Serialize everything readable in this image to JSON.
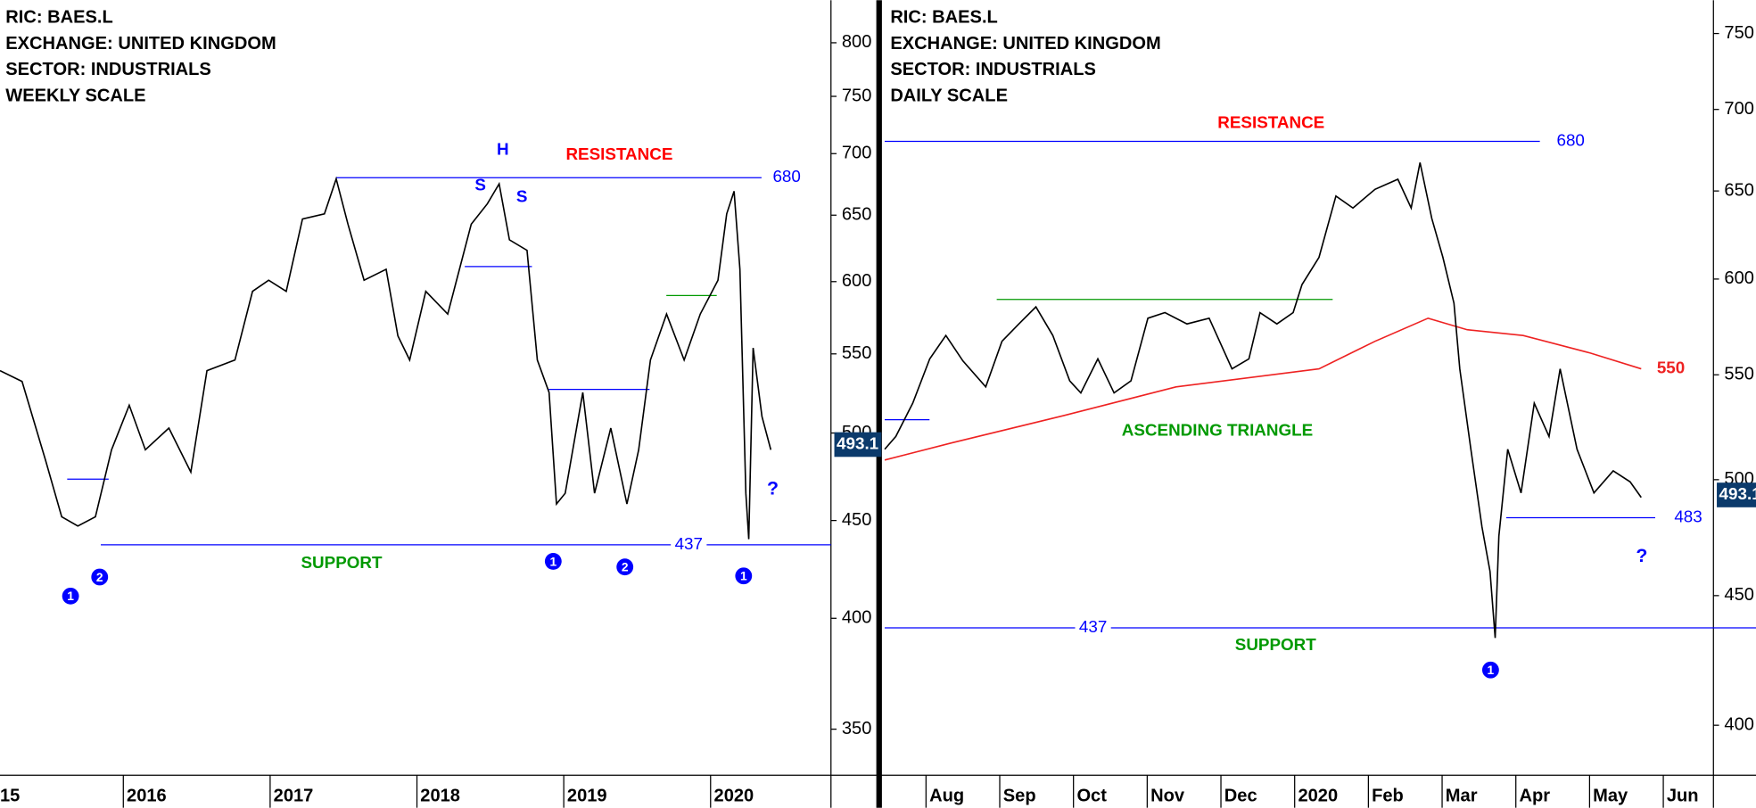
{
  "chart_data": [
    {
      "type": "line",
      "info": [
        "RIC: BAES.L",
        "EXCHANGE: UNITED KINGDOM",
        "SECTOR: INDUSTRIALS",
        "WEEKLY SCALE"
      ],
      "x": [
        2015.16,
        2015.31,
        2015.47,
        2015.58,
        2015.69,
        2015.81,
        2015.92,
        2016.04,
        2016.15,
        2016.31,
        2016.46,
        2016.57,
        2016.76,
        2016.88,
        2016.99,
        2017.11,
        2017.22,
        2017.37,
        2017.45,
        2017.53,
        2017.64,
        2017.79,
        2017.87,
        2017.95,
        2018.06,
        2018.21,
        2018.37,
        2018.48,
        2018.56,
        2018.63,
        2018.75,
        2018.82,
        2018.9,
        2018.95,
        2019.01,
        2019.13,
        2019.21,
        2019.32,
        2019.43,
        2019.51,
        2019.59,
        2019.7,
        2019.82,
        2019.93,
        2020.05,
        2020.11,
        2020.16,
        2020.2,
        2020.24,
        2020.26,
        2020.29,
        2020.35,
        2020.41
      ],
      "values": [
        539,
        532,
        484,
        452,
        447,
        452,
        490,
        517,
        490,
        503,
        477,
        539,
        546,
        593,
        601,
        593,
        647,
        651,
        679,
        643,
        601,
        609,
        562,
        546,
        593,
        577,
        643,
        659,
        675,
        631,
        623,
        546,
        525,
        459,
        465,
        525,
        465,
        503,
        459,
        490,
        546,
        577,
        546,
        577,
        601,
        651,
        669,
        609,
        465,
        440,
        554,
        510,
        490
      ],
      "color": "#000000",
      "xlim": [
        2015.16,
        2020.82
      ],
      "xticks": [
        {
          "value": 2015,
          "label": "15"
        },
        2016,
        2017,
        2018,
        2019,
        2020
      ],
      "ylim": [
        332,
        842
      ],
      "yticks": [
        350,
        400,
        450,
        500,
        550,
        600,
        650,
        700,
        750,
        800
      ],
      "log_scale": true,
      "last_price": 493.1,
      "levels": [
        {
          "name": "RESISTANCE",
          "value": 680,
          "name_color": "#ff0000"
        },
        {
          "name": "SUPPORT",
          "value": 437,
          "name_color": "#009900"
        }
      ],
      "pattern_lines": [
        {
          "value": 611,
          "color": "#0000ff"
        },
        {
          "value": 527,
          "color": "#0000ff"
        },
        {
          "value": 590,
          "color": "#009900"
        },
        {
          "value": 473,
          "color": "#0000ff"
        }
      ],
      "annotations": [
        {
          "text": "H",
          "color": "#0000ff"
        },
        {
          "text": "S",
          "color": "#0000ff"
        },
        {
          "text": "S",
          "color": "#0000ff"
        },
        {
          "text": "?",
          "color": "#0000ff"
        }
      ],
      "markers": [
        "1",
        "2",
        "1",
        "2",
        "1"
      ]
    },
    {
      "type": "line",
      "info": [
        "RIC: BAES.L",
        "EXCHANGE: UNITED KINGDOM",
        "SECTOR: INDUSTRIALS",
        "DAILY SCALE"
      ],
      "x": [
        7.44,
        7.59,
        7.82,
        8.05,
        8.27,
        8.5,
        8.81,
        9.03,
        9.26,
        9.49,
        9.72,
        9.95,
        10.1,
        10.33,
        10.55,
        10.78,
        11.01,
        11.24,
        11.54,
        11.84,
        12.15,
        12.38,
        12.53,
        12.76,
        12.98,
        13.1,
        13.33,
        13.56,
        13.79,
        14.09,
        14.4,
        14.58,
        14.7,
        14.86,
        15.01,
        15.16,
        15.24,
        15.39,
        15.54,
        15.65,
        15.72,
        15.77,
        15.89,
        16.07,
        16.25,
        16.45,
        16.6,
        16.83,
        17.06,
        17.32,
        17.55,
        17.7
      ],
      "values": [
        514,
        520,
        536,
        558,
        570,
        557,
        544,
        567,
        576,
        585,
        570,
        547,
        541,
        558,
        541,
        547,
        579,
        582,
        576,
        579,
        553,
        558,
        582,
        576,
        582,
        597,
        612,
        647,
        640,
        651,
        657,
        640,
        667,
        634,
        612,
        587,
        553,
        514,
        479,
        460,
        433,
        475,
        514,
        494,
        536,
        520,
        553,
        514,
        494,
        504,
        499,
        492
      ],
      "color": "#000000",
      "ma": {
        "x": [
          7.44,
          8.35,
          9.87,
          11.39,
          13.33,
          14.09,
          14.81,
          15.34,
          16.1,
          17.01,
          17.7
        ],
        "values": [
          509,
          517,
          530,
          544,
          553,
          567,
          579,
          573,
          570,
          561,
          553
        ],
        "color": "#ee2222",
        "end_label": 550
      },
      "xlim": [
        7.44,
        18.68
      ],
      "xticks": [
        {
          "value": 8,
          "label": "Aug"
        },
        {
          "value": 9,
          "label": "Sep"
        },
        {
          "value": 10,
          "label": "Oct"
        },
        {
          "value": 11,
          "label": "Nov"
        },
        {
          "value": 12,
          "label": "Dec"
        },
        {
          "value": 13,
          "label": "2020"
        },
        {
          "value": 14,
          "label": "Feb"
        },
        {
          "value": 15,
          "label": "Mar"
        },
        {
          "value": 16,
          "label": "Apr"
        },
        {
          "value": 17,
          "label": "May"
        },
        {
          "value": 18,
          "label": "Jun"
        }
      ],
      "ylim": [
        383,
        773
      ],
      "yticks": [
        400,
        450,
        500,
        550,
        600,
        650,
        700,
        750
      ],
      "log_scale": true,
      "last_price": 493.1,
      "levels": [
        {
          "name": "RESISTANCE",
          "value": 680,
          "name_color": "#ff0000"
        },
        {
          "name": "SUPPORT",
          "value": 437,
          "name_color": "#009900"
        },
        {
          "value": 483
        }
      ],
      "pattern_lines": [
        {
          "value": 589,
          "color": "#009900"
        },
        {
          "value": 528,
          "color": "#0000ff"
        }
      ],
      "annotations": [
        {
          "text": "ASCENDING TRIANGLE",
          "color": "#009900"
        },
        {
          "text": "?",
          "color": "#0000ff"
        }
      ],
      "markers": [
        "1"
      ]
    }
  ]
}
